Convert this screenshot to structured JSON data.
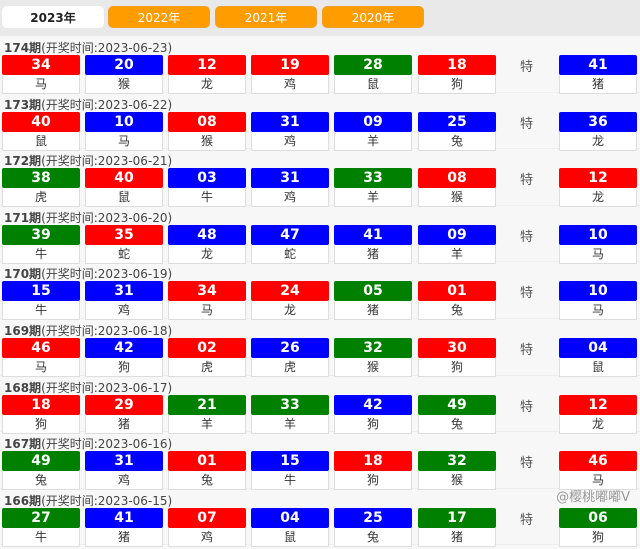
{
  "tabs": [
    {
      "label": "2023年",
      "active": true
    },
    {
      "label": "2022年"
    },
    {
      "label": "2021年"
    },
    {
      "label": "2020年"
    }
  ],
  "colors": {
    "red": "#ff0000",
    "blue": "#0000ff",
    "green": "#008000",
    "tab_orange": "#ff9d00"
  },
  "special_label": "特",
  "watermark": "@樱桃嘟嘟V",
  "draws": [
    {
      "period": "174期",
      "time": "(开奖时间:2023-06-23)",
      "balls": [
        [
          "34",
          "red",
          "马"
        ],
        [
          "20",
          "blue",
          "猴"
        ],
        [
          "12",
          "red",
          "龙"
        ],
        [
          "19",
          "red",
          "鸡"
        ],
        [
          "28",
          "green",
          "鼠"
        ],
        [
          "18",
          "red",
          "狗"
        ]
      ],
      "special": [
        "41",
        "blue",
        "猪"
      ]
    },
    {
      "period": "173期",
      "time": "(开奖时间:2023-06-22)",
      "balls": [
        [
          "40",
          "red",
          "鼠"
        ],
        [
          "10",
          "blue",
          "马"
        ],
        [
          "08",
          "red",
          "猴"
        ],
        [
          "31",
          "blue",
          "鸡"
        ],
        [
          "09",
          "blue",
          "羊"
        ],
        [
          "25",
          "blue",
          "兔"
        ]
      ],
      "special": [
        "36",
        "blue",
        "龙"
      ]
    },
    {
      "period": "172期",
      "time": "(开奖时间:2023-06-21)",
      "balls": [
        [
          "38",
          "green",
          "虎"
        ],
        [
          "40",
          "red",
          "鼠"
        ],
        [
          "03",
          "blue",
          "牛"
        ],
        [
          "31",
          "blue",
          "鸡"
        ],
        [
          "33",
          "green",
          "羊"
        ],
        [
          "08",
          "red",
          "猴"
        ]
      ],
      "special": [
        "12",
        "red",
        "龙"
      ]
    },
    {
      "period": "171期",
      "time": "(开奖时间:2023-06-20)",
      "balls": [
        [
          "39",
          "green",
          "牛"
        ],
        [
          "35",
          "red",
          "蛇"
        ],
        [
          "48",
          "blue",
          "龙"
        ],
        [
          "47",
          "blue",
          "蛇"
        ],
        [
          "41",
          "blue",
          "猪"
        ],
        [
          "09",
          "blue",
          "羊"
        ]
      ],
      "special": [
        "10",
        "blue",
        "马"
      ]
    },
    {
      "period": "170期",
      "time": "(开奖时间:2023-06-19)",
      "balls": [
        [
          "15",
          "blue",
          "牛"
        ],
        [
          "31",
          "blue",
          "鸡"
        ],
        [
          "34",
          "red",
          "马"
        ],
        [
          "24",
          "red",
          "龙"
        ],
        [
          "05",
          "green",
          "猪"
        ],
        [
          "01",
          "red",
          "兔"
        ]
      ],
      "special": [
        "10",
        "blue",
        "马"
      ]
    },
    {
      "period": "169期",
      "time": "(开奖时间:2023-06-18)",
      "balls": [
        [
          "46",
          "red",
          "马"
        ],
        [
          "42",
          "blue",
          "狗"
        ],
        [
          "02",
          "red",
          "虎"
        ],
        [
          "26",
          "blue",
          "虎"
        ],
        [
          "32",
          "green",
          "猴"
        ],
        [
          "30",
          "red",
          "狗"
        ]
      ],
      "special": [
        "04",
        "blue",
        "鼠"
      ]
    },
    {
      "period": "168期",
      "time": "(开奖时间:2023-06-17)",
      "balls": [
        [
          "18",
          "red",
          "狗"
        ],
        [
          "29",
          "red",
          "猪"
        ],
        [
          "21",
          "green",
          "羊"
        ],
        [
          "33",
          "green",
          "羊"
        ],
        [
          "42",
          "blue",
          "狗"
        ],
        [
          "49",
          "green",
          "兔"
        ]
      ],
      "special": [
        "12",
        "red",
        "龙"
      ]
    },
    {
      "period": "167期",
      "time": "(开奖时间:2023-06-16)",
      "balls": [
        [
          "49",
          "green",
          "兔"
        ],
        [
          "31",
          "blue",
          "鸡"
        ],
        [
          "01",
          "red",
          "兔"
        ],
        [
          "15",
          "blue",
          "牛"
        ],
        [
          "18",
          "red",
          "狗"
        ],
        [
          "32",
          "green",
          "猴"
        ]
      ],
      "special": [
        "46",
        "red",
        "马"
      ]
    },
    {
      "period": "166期",
      "time": "(开奖时间:2023-06-15)",
      "balls": [
        [
          "27",
          "green",
          "牛"
        ],
        [
          "41",
          "blue",
          "猪"
        ],
        [
          "07",
          "red",
          "鸡"
        ],
        [
          "04",
          "blue",
          "鼠"
        ],
        [
          "25",
          "blue",
          "兔"
        ],
        [
          "17",
          "green",
          "猪"
        ]
      ],
      "special": [
        "06",
        "green",
        "狗"
      ]
    }
  ]
}
